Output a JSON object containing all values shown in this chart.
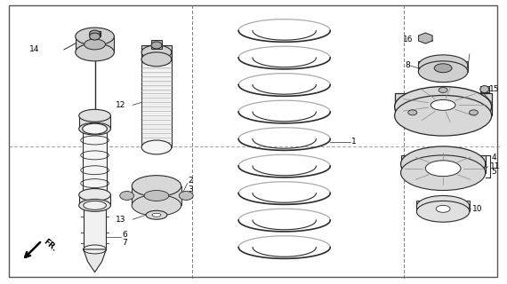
{
  "bg_color": "#ffffff",
  "line_color": "#2a2a2a",
  "fig_w": 5.7,
  "fig_h": 3.2,
  "dpi": 100
}
